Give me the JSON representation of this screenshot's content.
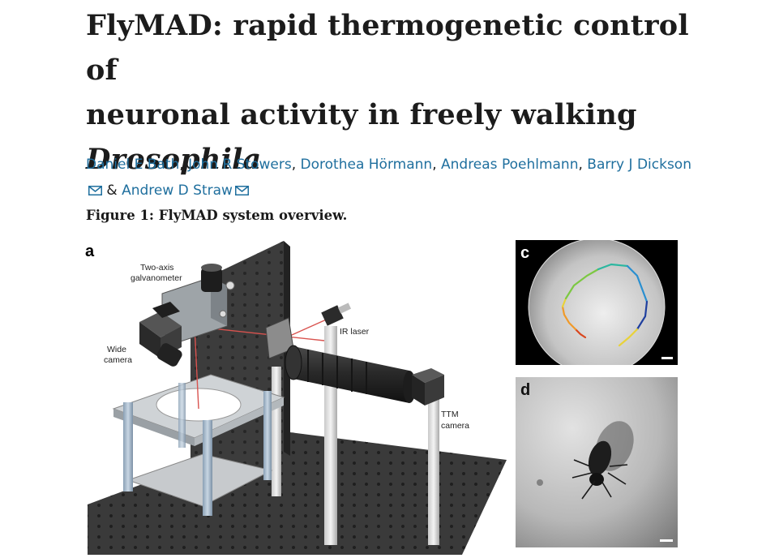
{
  "article": {
    "title_line1": "FlyMAD: rapid thermogenetic control of",
    "title_line2": "neuronal activity in freely walking",
    "title_line3": "Drosophila",
    "authors": [
      "Daniel E Bath",
      "John R Stowers",
      "Dorothea Hörmann",
      "Andreas Poehlmann",
      "Barry J Dickson",
      "Andrew D Straw"
    ],
    "sep_comma": ", ",
    "sep_amp": " & "
  },
  "figure": {
    "caption": "Figure 1: FlyMAD system overview.",
    "panels": {
      "a": "a",
      "c": "c",
      "d": "d"
    },
    "labels": {
      "galvo_line1": "Two-axis",
      "galvo_line2": "galvanometer",
      "ir_laser": "IR laser",
      "wide_line1": "Wide",
      "wide_line2": "camera",
      "ttm_line1": "TTM",
      "ttm_line2": "camera"
    },
    "colors": {
      "link": "#1f6f9e",
      "laser": "#d9534f",
      "trajectory": [
        "#1f3f9e",
        "#2a8fd0",
        "#2cb7a0",
        "#7cc842",
        "#e8d23a",
        "#f09a2a",
        "#d9471f"
      ]
    }
  }
}
